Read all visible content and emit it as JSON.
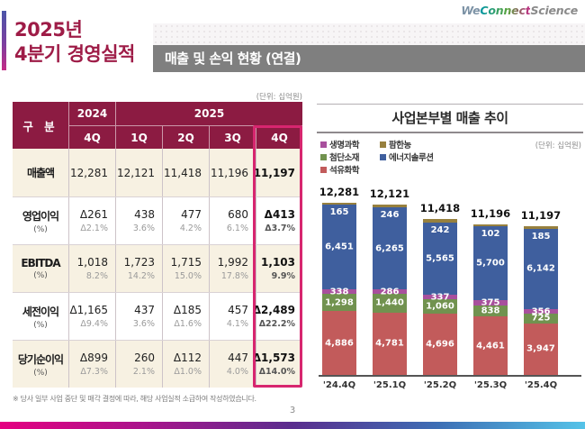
{
  "logo": {
    "we": "We",
    "connect": "Connect",
    "science": "Science"
  },
  "slide": {
    "title_line1": "2025년",
    "title_line2": "4분기 경영실적",
    "section_title": "매출 및 손익 현황 (연결)",
    "footnote": "※ 당사 일부 사업 중단 및 매각 결정에 따라, 해당 사업실적 소급하여 작성하였습니다.",
    "page_number": "3"
  },
  "table": {
    "unit_label": "(단위: 십억원)",
    "corner_label": "구 분",
    "year_groups": [
      {
        "label": "2024",
        "span": 1
      },
      {
        "label": "2025",
        "span": 4
      }
    ],
    "quarter_headers": [
      "4Q",
      "1Q",
      "2Q",
      "3Q",
      "4Q"
    ],
    "rows": [
      {
        "label": "매출액",
        "sub": "",
        "values": [
          "12,281",
          "12,121",
          "11,418",
          "11,196",
          "11,197"
        ],
        "pcts": [
          "",
          "",
          "",
          "",
          ""
        ]
      },
      {
        "label": "영업이익",
        "sub": "(%)",
        "values": [
          "Δ261",
          "438",
          "477",
          "680",
          "Δ413"
        ],
        "pcts": [
          "Δ2.1%",
          "3.6%",
          "4.2%",
          "6.1%",
          "Δ3.7%"
        ]
      },
      {
        "label": "EBITDA",
        "sub": "(%)",
        "values": [
          "1,018",
          "1,723",
          "1,715",
          "1,992",
          "1,103"
        ],
        "pcts": [
          "8.2%",
          "14.2%",
          "15.0%",
          "17.8%",
          "9.9%"
        ]
      },
      {
        "label": "세전이익",
        "sub": "(%)",
        "values": [
          "Δ1,165",
          "437",
          "Δ185",
          "457",
          "Δ2,489"
        ],
        "pcts": [
          "Δ9.4%",
          "3.6%",
          "Δ1.6%",
          "4.1%",
          "Δ22.2%"
        ]
      },
      {
        "label": "당기순이익",
        "sub": "(%)",
        "values": [
          "Δ899",
          "260",
          "Δ112",
          "447",
          "Δ1,573"
        ],
        "pcts": [
          "Δ7.3%",
          "2.1%",
          "Δ1.0%",
          "4.0%",
          "Δ14.0%"
        ]
      }
    ],
    "highlight_column_index": 4,
    "highlight_color": "#d7266f",
    "header_color": "#8c1b42"
  },
  "chart_data": {
    "type": "bar",
    "stacked": true,
    "title": "사업본부별 매출 추이",
    "unit_label": "(단위: 십억원)",
    "categories": [
      "'24.4Q",
      "'25.1Q",
      "'25.2Q",
      "'25.3Q",
      "'25.4Q"
    ],
    "totals": [
      "12,281",
      "12,121",
      "11,418",
      "11,196",
      "11,197"
    ],
    "series": [
      {
        "name": "석유화학",
        "color": "#c25b5b",
        "values": [
          4886,
          4781,
          4696,
          4461,
          3947
        ]
      },
      {
        "name": "첨단소재",
        "color": "#71924f",
        "values": [
          1298,
          1440,
          1060,
          838,
          725
        ]
      },
      {
        "name": "생명과학",
        "color": "#a8509d",
        "values": [
          338,
          286,
          337,
          375,
          356
        ]
      },
      {
        "name": "에너지솔루션",
        "color": "#3f5f9e",
        "values": [
          6451,
          6265,
          5565,
          5700,
          6142
        ]
      },
      {
        "name": "팜한농",
        "color": "#97803e",
        "values": [
          165,
          246,
          242,
          102,
          185
        ]
      }
    ],
    "legend_rows": [
      [
        "생명과학",
        "팜한농"
      ],
      [
        "첨단소재",
        "에너지솔루션"
      ],
      [
        "석유화학"
      ]
    ],
    "legend_position": "top-left",
    "grid": false
  }
}
